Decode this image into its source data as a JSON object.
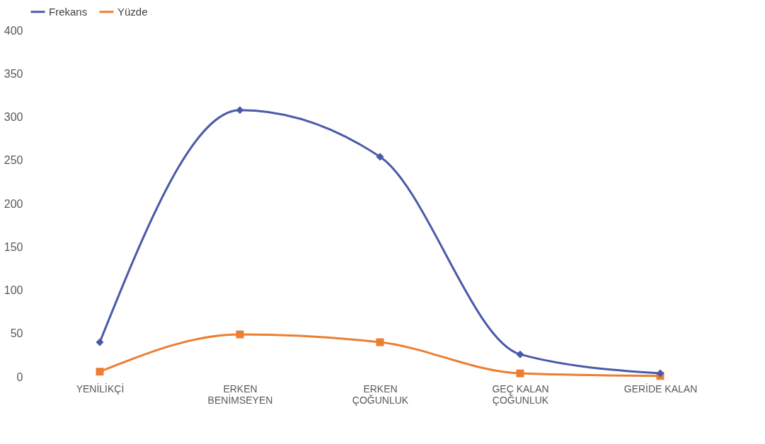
{
  "chart_data": {
    "type": "line",
    "categories": [
      "YENİLİKÇİ",
      "ERKEN BENİMSEYEN",
      "ERKEN ÇOĞUNLUK",
      "GEÇ KALAN ÇOĞUNLUK",
      "GERİDE KALAN"
    ],
    "series": [
      {
        "name": "Frekans",
        "color": "#4a5aa8",
        "marker": "diamond",
        "values": [
          40,
          308,
          254,
          26,
          4
        ]
      },
      {
        "name": "Yüzde",
        "color": "#ed7d31",
        "marker": "square",
        "values": [
          6,
          49,
          40,
          4,
          1
        ]
      }
    ],
    "ylim": [
      0,
      400
    ],
    "yticks": [
      0,
      50,
      100,
      150,
      200,
      250,
      300,
      350,
      400
    ],
    "grid": false,
    "legend": "top",
    "line_style": "solid"
  }
}
